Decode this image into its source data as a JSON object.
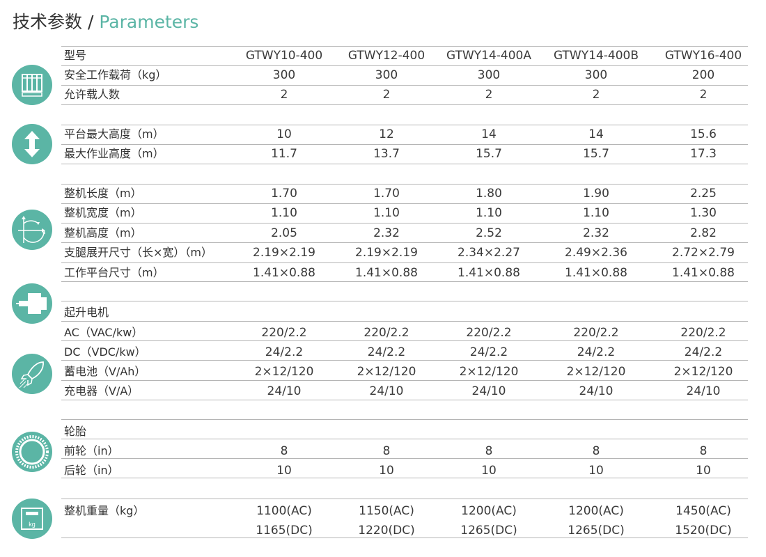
{
  "title": {
    "cn": "技术参数",
    "sep": " / ",
    "en": "Parameters"
  },
  "accent": "#5bb5a5",
  "header": {
    "label": "型号",
    "models": [
      "GTWY10-400",
      "GTWY12-400",
      "GTWY14-400A",
      "GTWY14-400B",
      "GTWY16-400"
    ]
  },
  "groups": [
    {
      "icon": "platform-icon",
      "rows": [
        {
          "label": "安全工作载荷（kg）",
          "values": [
            "300",
            "300",
            "300",
            "300",
            "200"
          ]
        },
        {
          "label": "允许载人数",
          "values": [
            "2",
            "2",
            "2",
            "2",
            "2"
          ]
        }
      ]
    },
    {
      "icon": "height-arrow-icon",
      "rows": [
        {
          "label": "平台最大高度（m）",
          "values": [
            "10",
            "12",
            "14",
            "14",
            "15.6"
          ]
        },
        {
          "label": "最大作业高度（m）",
          "values": [
            "11.7",
            "13.7",
            "15.7",
            "15.7",
            "17.3"
          ]
        }
      ]
    },
    {
      "icon": "dimensions-axes-icon",
      "rows": [
        {
          "label": "整机长度（m）",
          "values": [
            "1.70",
            "1.70",
            "1.80",
            "1.90",
            "2.25"
          ]
        },
        {
          "label": "整机宽度（m）",
          "values": [
            "1.10",
            "1.10",
            "1.10",
            "1.10",
            "1.30"
          ]
        },
        {
          "label": "整机高度（m）",
          "values": [
            "2.05",
            "2.32",
            "2.52",
            "2.32",
            "2.82"
          ]
        },
        {
          "label": "支腿展开尺寸（长×宽）（m）",
          "values": [
            "2.19×2.19",
            "2.19×2.19",
            "2.34×2.27",
            "2.49×2.36",
            "2.72×2.79"
          ]
        },
        {
          "label": "工作平台尺寸（m）",
          "values": [
            "1.41×0.88",
            "1.41×0.88",
            "1.41×0.88",
            "1.41×0.88",
            "1.41×0.88"
          ]
        }
      ]
    },
    {
      "icon": "motor-icon",
      "icon2": "rocket-icon",
      "heading": "起升电机",
      "rows": [
        {
          "label": "AC（VAC/kw）",
          "values": [
            "220/2.2",
            "220/2.2",
            "220/2.2",
            "220/2.2",
            "220/2.2"
          ]
        },
        {
          "label": "DC（VDC/kw）",
          "values": [
            "24/2.2",
            "24/2.2",
            "24/2.2",
            "24/2.2",
            "24/2.2"
          ]
        },
        {
          "label": "蓄电池（V/Ah）",
          "values": [
            "2×12/120",
            "2×12/120",
            "2×12/120",
            "2×12/120",
            "2×12/120"
          ]
        },
        {
          "label": "充电器（V/A）",
          "values": [
            "24/10",
            "24/10",
            "24/10",
            "24/10",
            "24/10"
          ]
        }
      ]
    },
    {
      "icon": "tire-icon",
      "heading": "轮胎",
      "rows": [
        {
          "label": "前轮（in）",
          "values": [
            "8",
            "8",
            "8",
            "8",
            "8"
          ]
        },
        {
          "label": "后轮（in）",
          "values": [
            "10",
            "10",
            "10",
            "10",
            "10"
          ]
        }
      ]
    },
    {
      "icon": "weight-kg-icon",
      "icon_text": "kg",
      "rows": [
        {
          "label": "整机重量（kg）",
          "values": [
            "1100(AC)",
            "1150(AC)",
            "1200(AC)",
            "1200(AC)",
            "1450(AC)"
          ],
          "values2": [
            "1165(DC)",
            "1220(DC)",
            "1265(DC)",
            "1265(DC)",
            "1520(DC)"
          ]
        }
      ]
    }
  ]
}
